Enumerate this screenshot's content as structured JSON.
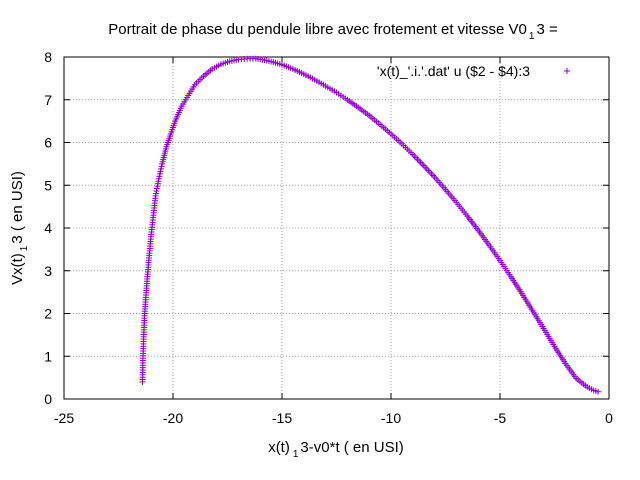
{
  "chart_data": {
    "type": "scatter",
    "title": "Portrait de phase du pendule libre avec frotement et vitesse V0",
    "title_subscript": "1",
    "title_suffix": "3 =",
    "xlabel": "x(t)",
    "xlabel_subscript": "1",
    "xlabel_suffix": "3-v0*t ( en USI)",
    "ylabel": "Vx(t)",
    "ylabel_subscript": "1",
    "ylabel_suffix": "3 ( en USI)",
    "xlim": [
      -25,
      0
    ],
    "ylim": [
      0,
      8
    ],
    "xticks": [
      "-25",
      "-20",
      "-15",
      "-10",
      "-5",
      "0"
    ],
    "yticks": [
      "0",
      "1",
      "2",
      "3",
      "4",
      "5",
      "6",
      "7",
      "8"
    ],
    "grid": true,
    "legend_position": "top-right",
    "marker": "+",
    "colors": {
      "series": "#9400d3",
      "grid": "#a0a0a0",
      "axis": "#000000"
    },
    "series": [
      {
        "name": "'x(t)_'.i.'.dat' u ($2 - $4):3",
        "x": [
          -21.4,
          -21.38,
          -21.35,
          -21.3,
          -21.2,
          -21.1,
          -21.0,
          -20.9,
          -20.8,
          -20.65,
          -20.5,
          -20.3,
          -20.1,
          -19.9,
          -19.6,
          -19.3,
          -19.0,
          -18.6,
          -18.2,
          -17.8,
          -17.4,
          -17.0,
          -16.6,
          -16.2,
          -15.8,
          -15.4,
          -15.0,
          -14.6,
          -14.2,
          -13.8,
          -13.4,
          -13.0,
          -12.5,
          -12.0,
          -11.5,
          -11.0,
          -10.5,
          -10.0,
          -9.5,
          -9.0,
          -8.5,
          -8.0,
          -7.5,
          -7.0,
          -6.5,
          -6.0,
          -5.5,
          -5.0,
          -4.5,
          -4.0,
          -3.5,
          -3.0,
          -2.5,
          -2.0,
          -1.5,
          -1.0,
          -0.7,
          -0.5
        ],
        "y": [
          0.4,
          0.9,
          1.4,
          2.0,
          2.7,
          3.3,
          3.85,
          4.3,
          4.75,
          5.15,
          5.5,
          5.9,
          6.2,
          6.5,
          6.85,
          7.1,
          7.35,
          7.55,
          7.72,
          7.83,
          7.9,
          7.94,
          7.96,
          7.96,
          7.93,
          7.88,
          7.82,
          7.74,
          7.65,
          7.55,
          7.44,
          7.32,
          7.17,
          7.0,
          6.82,
          6.63,
          6.42,
          6.2,
          5.97,
          5.72,
          5.46,
          5.19,
          4.9,
          4.6,
          4.28,
          3.95,
          3.6,
          3.24,
          2.86,
          2.47,
          2.06,
          1.65,
          1.23,
          0.83,
          0.48,
          0.28,
          0.2,
          0.17
        ]
      }
    ]
  }
}
